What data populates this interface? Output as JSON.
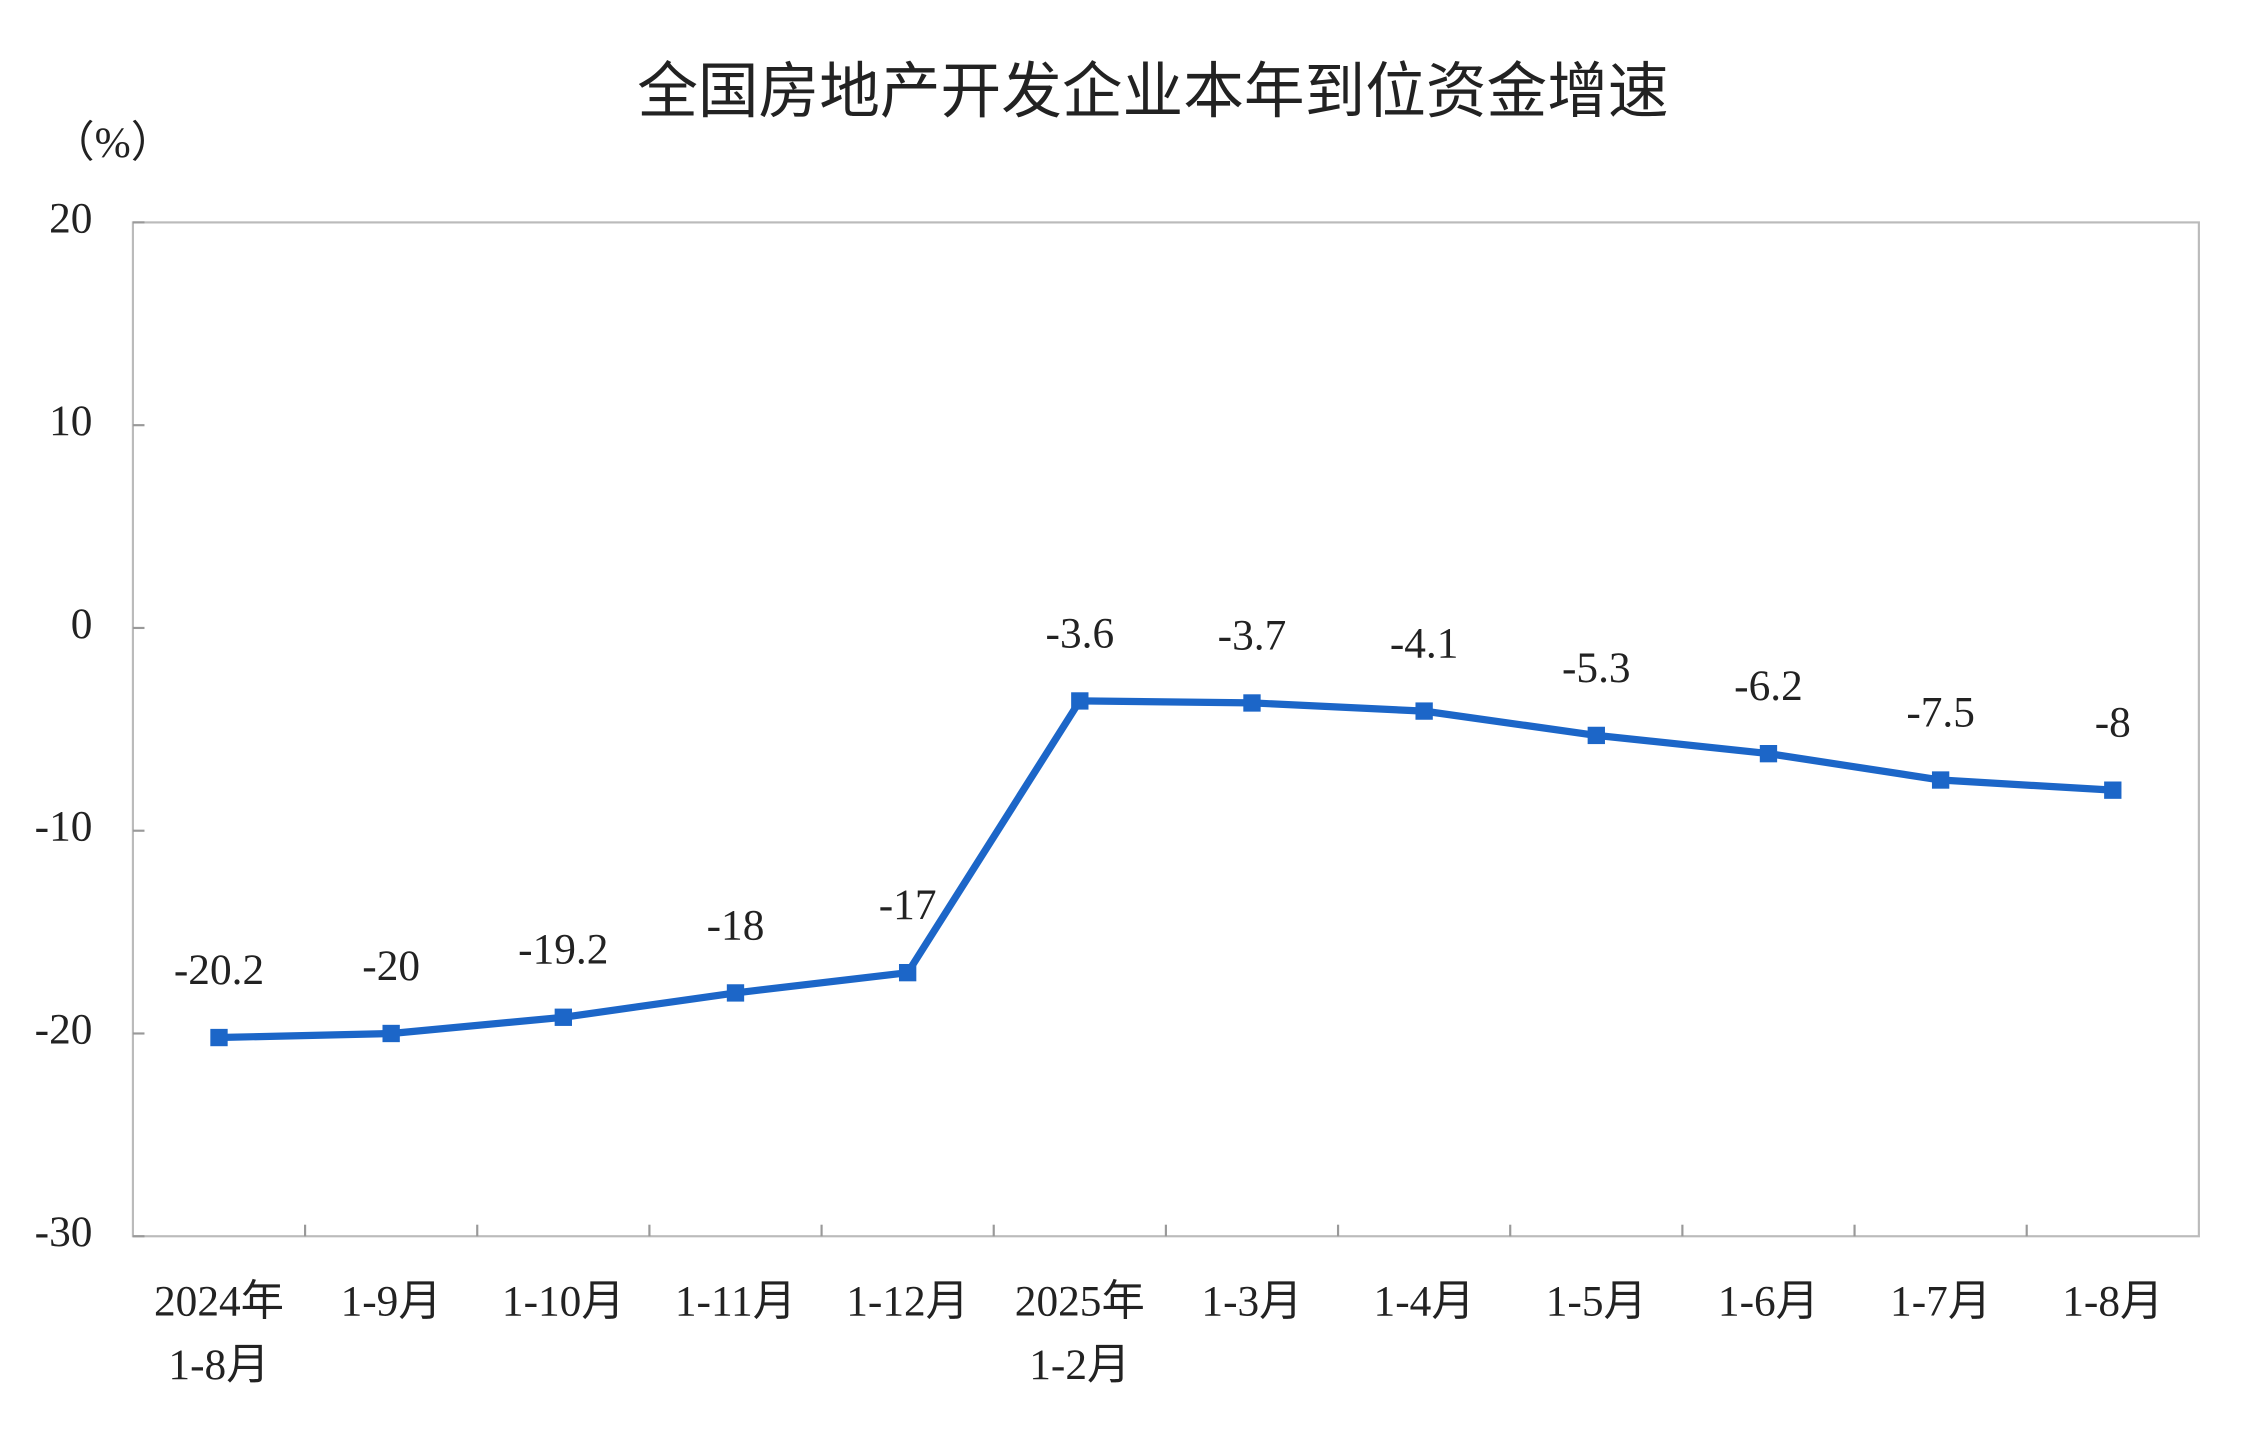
{
  "chart_data": {
    "type": "line",
    "title": "全国房地产开发企业本年到位资金增速",
    "y_unit": "（%）",
    "categories": [
      "2024年\n1-8月",
      "1-9月",
      "1-10月",
      "1-11月",
      "1-12月",
      "2025年\n1-2月",
      "1-3月",
      "1-4月",
      "1-5月",
      "1-6月",
      "1-7月",
      "1-8月"
    ],
    "series": [
      {
        "name": "本年到位资金增速",
        "color": "#1c66c8",
        "values": [
          -20.2,
          -20.0,
          -19.2,
          -18.0,
          -17.0,
          -3.6,
          -3.7,
          -4.1,
          -5.3,
          -6.2,
          -7.5,
          -8.0
        ]
      }
    ],
    "ylim": [
      -30,
      20
    ],
    "yticks": [
      -30,
      -20,
      -10,
      0,
      10,
      20
    ],
    "grid": false
  }
}
